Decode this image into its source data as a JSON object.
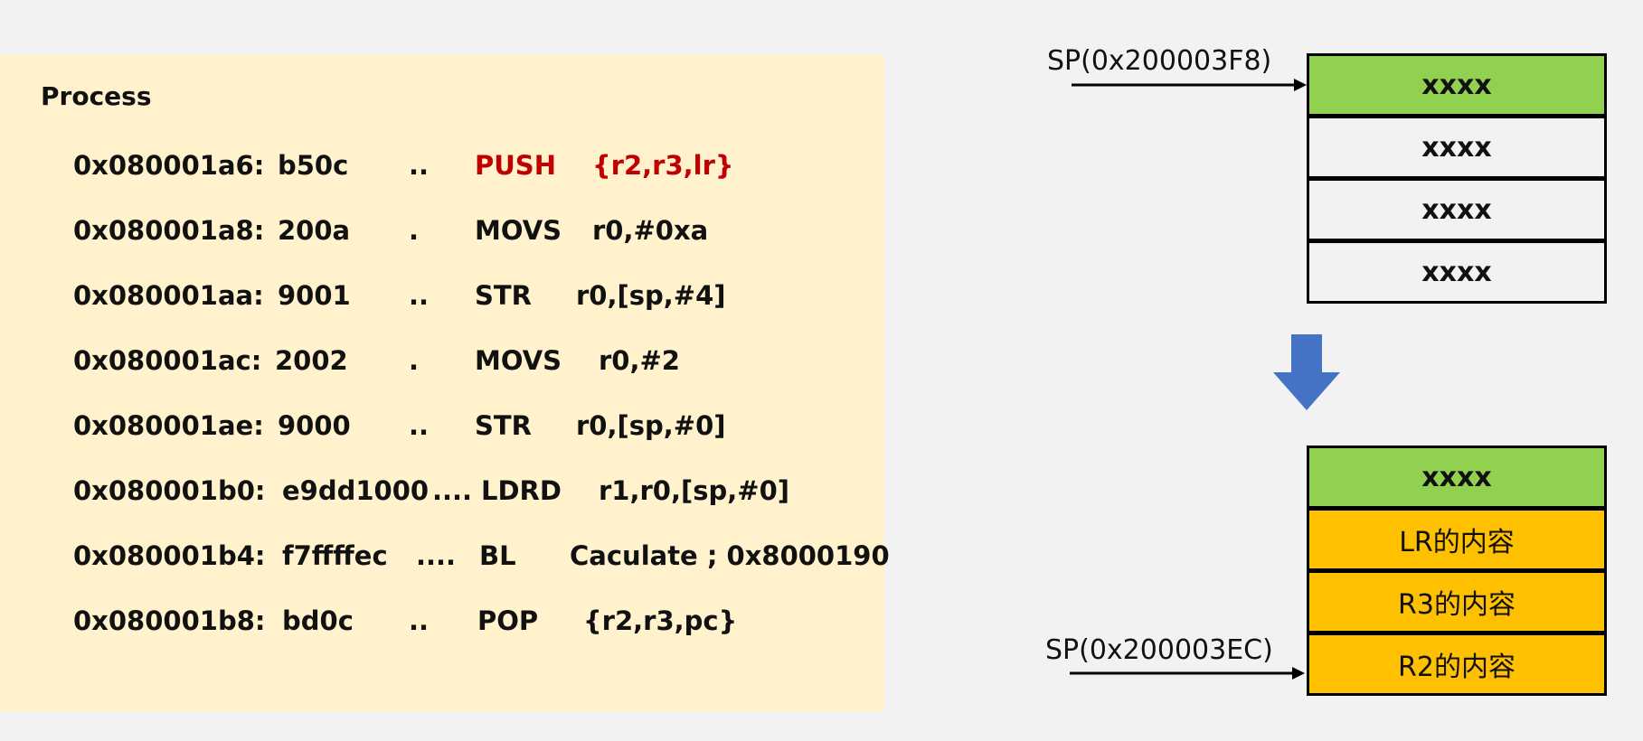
{
  "process": {
    "heading": "Process",
    "rows": [
      {
        "addr": "0x080001a6:",
        "hex": "b50c",
        "dots": "..",
        "op": "PUSH",
        "args": "{r2,r3,lr}",
        "highlight": true
      },
      {
        "addr": "0x080001a8:",
        "hex": "200a",
        "dots": ".",
        "op": "MOVS",
        "args": "r0,#0xa",
        "highlight": false
      },
      {
        "addr": "0x080001aa:",
        "hex": "9001",
        "dots": "..",
        "op": "STR",
        "args": "r0,[sp,#4]",
        "highlight": false
      },
      {
        "addr": "0x080001ac:",
        "hex": "2002",
        "dots": ".",
        "op": "MOVS",
        "args": "r0,#2",
        "highlight": false
      },
      {
        "addr": "0x080001ae:",
        "hex": "9000",
        "dots": "..",
        "op": "STR",
        "args": "r0,[sp,#0]",
        "highlight": false
      },
      {
        "addr": "0x080001b0:",
        "hex": "e9dd1000",
        "dots": "....",
        "op": "LDRD",
        "args": "r1,r0,[sp,#0]",
        "highlight": false
      },
      {
        "addr": "0x080001b4:",
        "hex": "f7ffffec",
        "dots": "....",
        "op": "BL",
        "args": "Caculate ; 0x8000190",
        "highlight": false
      },
      {
        "addr": "0x080001b8:",
        "hex": "bd0c",
        "dots": "..",
        "op": "POP",
        "args": "{r2,r3,pc}",
        "highlight": false
      }
    ]
  },
  "stack_before": {
    "sp_label": "SP(0x200003F8)",
    "cells": [
      "xxxx",
      "xxxx",
      "xxxx",
      "xxxx"
    ]
  },
  "stack_after": {
    "sp_label": "SP(0x200003EC)",
    "cells": [
      "xxxx",
      "LR的内容",
      "R3的内容",
      "R2的内容"
    ]
  },
  "colors": {
    "panel_bg": "#fff2cc",
    "highlight_red": "#c00000",
    "cell_green": "#92d050",
    "cell_orange": "#ffc000",
    "arrow_blue": "#4472c4"
  }
}
